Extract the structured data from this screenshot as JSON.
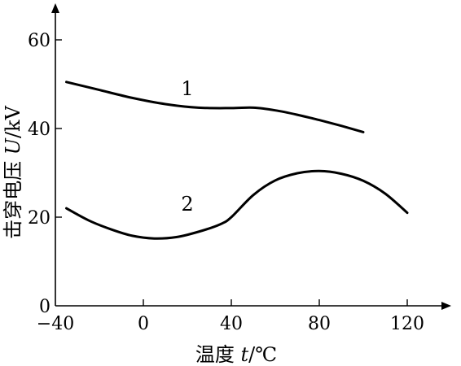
{
  "chart_data": {
    "type": "line",
    "xlabel_prefix": "温度 ",
    "xlabel_var": "t",
    "xlabel_unit": "/℃",
    "ylabel_prefix": "击穿电压 ",
    "ylabel_var": "U",
    "ylabel_unit": "/kV",
    "xlim": [
      -40,
      140
    ],
    "ylim": [
      0,
      66
    ],
    "xticks": [
      -40,
      0,
      40,
      80,
      120
    ],
    "yticks": [
      0,
      20,
      40,
      60
    ],
    "grid": false,
    "series": [
      {
        "name": "1",
        "x": [
          -35,
          -20,
          -5,
          10,
          25,
          40,
          50,
          60,
          70,
          80,
          90,
          100
        ],
        "y": [
          50.5,
          48.7,
          46.9,
          45.5,
          44.7,
          44.6,
          44.7,
          44.1,
          43.1,
          41.9,
          40.6,
          39.2
        ]
      },
      {
        "name": "2",
        "x": [
          -35,
          -25,
          -15,
          -5,
          5,
          15,
          25,
          35,
          40,
          50,
          60,
          70,
          80,
          90,
          100,
          110,
          120
        ],
        "y": [
          22,
          19.3,
          17.3,
          15.8,
          15.2,
          15.5,
          16.7,
          18.4,
          20,
          25,
          28.3,
          29.9,
          30.4,
          29.8,
          28.2,
          25.3,
          21
        ]
      }
    ],
    "series_labels": [
      {
        "series": 0,
        "text": "1",
        "x": 20,
        "y": 47.5
      },
      {
        "series": 1,
        "text": "2",
        "x": 20,
        "y": 21.5
      }
    ]
  }
}
